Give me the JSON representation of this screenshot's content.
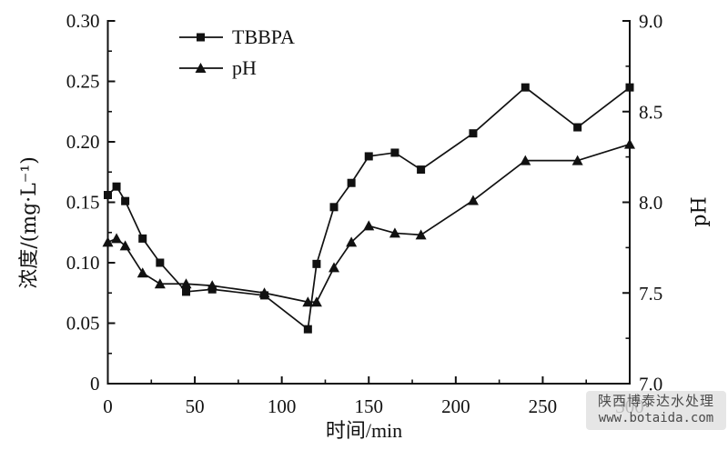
{
  "chart_data": {
    "type": "line",
    "title": "",
    "xlabel": "时间/min",
    "ylabel_left": "浓度/(mg·L⁻¹)",
    "ylabel_right": "pH",
    "xlim": [
      0,
      300
    ],
    "ylim_left": [
      0,
      0.3
    ],
    "ylim_right": [
      7.0,
      9.0
    ],
    "xticks": [
      "0",
      "50",
      "100",
      "150",
      "200",
      "250",
      "300"
    ],
    "yticks_left": [
      "0",
      "0.05",
      "0.10",
      "0.15",
      "0.20",
      "0.25",
      "0.30"
    ],
    "yticks_right": [
      "7.0",
      "7.5",
      "8.0",
      "8.5",
      "9.0"
    ],
    "minor_step_x": 25,
    "minor_step_left": 0.025,
    "minor_step_right": 0.25,
    "grid": false,
    "legend_position": "top-left-inside",
    "line_color": "#111111",
    "x": [
      0,
      5,
      10,
      20,
      30,
      45,
      60,
      90,
      115,
      120,
      130,
      140,
      150,
      165,
      180,
      210,
      240,
      270,
      300
    ],
    "series": [
      {
        "name": "TBBPA",
        "marker": "square",
        "axis": "left",
        "values": [
          0.156,
          0.163,
          0.151,
          0.12,
          0.1,
          0.076,
          0.078,
          0.073,
          0.045,
          0.099,
          0.146,
          0.166,
          0.188,
          0.191,
          0.177,
          0.207,
          0.245,
          0.212,
          0.245
        ]
      },
      {
        "name": "pH",
        "marker": "triangle",
        "axis": "right",
        "values": [
          7.78,
          7.8,
          7.76,
          7.61,
          7.55,
          7.55,
          7.54,
          7.5,
          7.45,
          7.45,
          7.64,
          7.78,
          7.87,
          7.83,
          7.82,
          8.01,
          8.23,
          8.23,
          8.32
        ]
      }
    ]
  },
  "legend": {
    "items": [
      {
        "label": "TBBPA",
        "marker": "square"
      },
      {
        "label": "pH",
        "marker": "triangle"
      }
    ]
  },
  "watermark": {
    "line1": "陕西博泰达水处理",
    "line2": "www.botaida.com"
  }
}
